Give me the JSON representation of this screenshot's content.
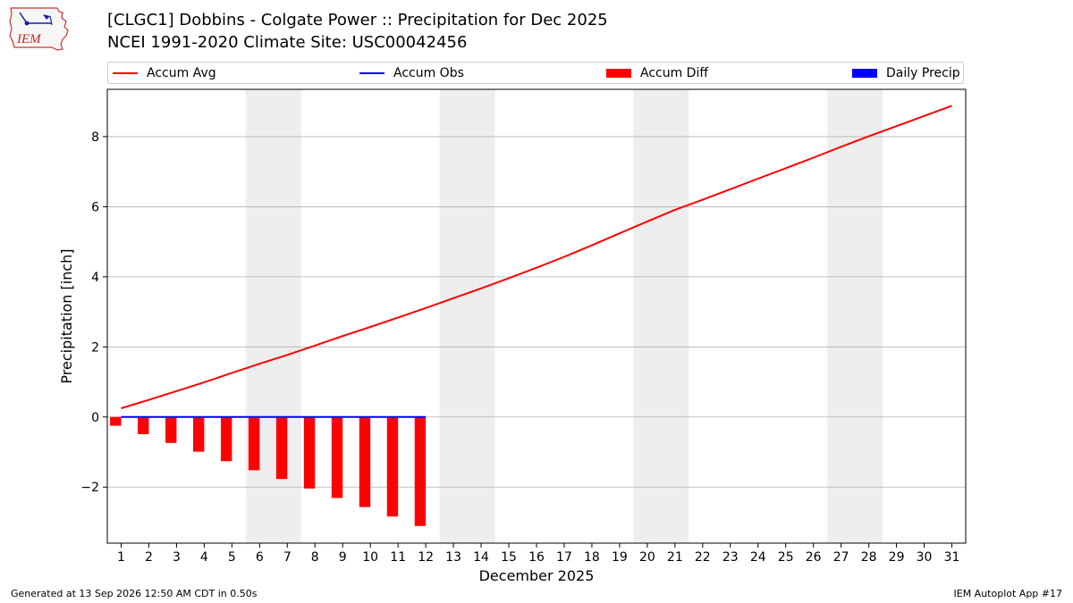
{
  "header": {
    "title_line1": "[CLGC1] Dobbins - Colgate Power :: Precipitation for Dec 2025",
    "title_line2": "NCEI 1991-2020 Climate Site: USC00042456",
    "logo_text": "IEM"
  },
  "footer": {
    "left": "Generated at 13 Sep 2026 12:50 AM CDT in 0.50s",
    "right": "IEM Autoplot App #17"
  },
  "colors": {
    "accum_avg": "#ff0000",
    "accum_obs": "#0000ff",
    "accum_diff": "#ff0000",
    "daily_precip": "#0000ff",
    "weekend_band": "#eeeeee",
    "grid": "#b0b0b0"
  },
  "chart_data": {
    "type": "line",
    "xlabel": "December 2025",
    "ylabel": "Precipitation [inch]",
    "xlim": [
      0.5,
      31.5
    ],
    "ylim": [
      -3.6,
      9.35
    ],
    "x_ticks": [
      1,
      2,
      3,
      4,
      5,
      6,
      7,
      8,
      9,
      10,
      11,
      12,
      13,
      14,
      15,
      16,
      17,
      18,
      19,
      20,
      21,
      22,
      23,
      24,
      25,
      26,
      27,
      28,
      29,
      30,
      31
    ],
    "y_ticks": [
      -2,
      0,
      2,
      4,
      6,
      8
    ],
    "y_tick_labels": [
      "−2",
      "0",
      "2",
      "4",
      "6",
      "8"
    ],
    "grid": "horizontal",
    "weekend_bands": [
      [
        5.5,
        7.5
      ],
      [
        12.5,
        14.5
      ],
      [
        19.5,
        21.5
      ],
      [
        26.5,
        28.5
      ]
    ],
    "legend": {
      "placement": "top",
      "entries": [
        "Accum Avg",
        "Accum Obs",
        "Accum Diff",
        "Daily Precip"
      ]
    },
    "series": [
      {
        "name": "Accum Avg",
        "kind": "line",
        "x": [
          1,
          2,
          3,
          4,
          5,
          6,
          7,
          8,
          9,
          10,
          11,
          12,
          13,
          14,
          15,
          16,
          17,
          18,
          19,
          20,
          21,
          22,
          23,
          24,
          25,
          26,
          27,
          28,
          29,
          30,
          31
        ],
        "values": [
          0.25,
          0.49,
          0.74,
          0.99,
          1.26,
          1.52,
          1.77,
          2.04,
          2.31,
          2.57,
          2.84,
          3.11,
          3.39,
          3.67,
          3.96,
          4.26,
          4.57,
          4.9,
          5.24,
          5.58,
          5.91,
          6.2,
          6.5,
          6.8,
          7.1,
          7.4,
          7.71,
          8.01,
          8.3,
          8.59,
          8.88
        ]
      },
      {
        "name": "Accum Obs",
        "kind": "line",
        "x": [
          1,
          2,
          3,
          4,
          5,
          6,
          7,
          8,
          9,
          10,
          11,
          12
        ],
        "values": [
          0,
          0,
          0,
          0,
          0,
          0,
          0,
          0,
          0,
          0,
          0,
          0
        ]
      },
      {
        "name": "Accum Diff",
        "kind": "bar",
        "x": [
          1,
          2,
          3,
          4,
          5,
          6,
          7,
          8,
          9,
          10,
          11,
          12
        ],
        "values": [
          -0.25,
          -0.49,
          -0.74,
          -0.99,
          -1.26,
          -1.52,
          -1.77,
          -2.04,
          -2.31,
          -2.57,
          -2.84,
          -3.11
        ]
      },
      {
        "name": "Daily Precip",
        "kind": "bar",
        "x": [
          1,
          2,
          3,
          4,
          5,
          6,
          7,
          8,
          9,
          10,
          11,
          12
        ],
        "values": [
          0,
          0,
          0,
          0,
          0,
          0,
          0,
          0,
          0,
          0,
          0,
          0
        ]
      }
    ]
  }
}
